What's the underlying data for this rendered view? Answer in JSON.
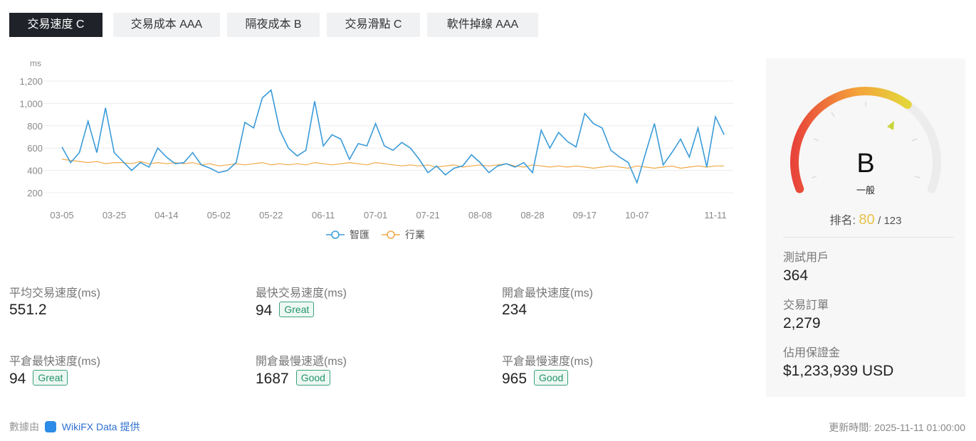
{
  "tabs": [
    "交易速度 C",
    "交易成本 AAA",
    "隔夜成本 B",
    "交易滑點 C",
    "軟件掉線 AAA"
  ],
  "chart_data": {
    "type": "line",
    "y_unit": "ms",
    "categories": [
      "03-05",
      null,
      null,
      null,
      null,
      null,
      "03-25",
      null,
      null,
      null,
      null,
      null,
      "04-14",
      null,
      null,
      null,
      null,
      null,
      "05-02",
      null,
      null,
      null,
      null,
      null,
      "05-22",
      null,
      null,
      null,
      null,
      null,
      "06-11",
      null,
      null,
      null,
      null,
      null,
      "07-01",
      null,
      null,
      null,
      null,
      null,
      "07-21",
      null,
      null,
      null,
      null,
      null,
      "08-08",
      null,
      null,
      null,
      null,
      null,
      "08-28",
      null,
      null,
      null,
      null,
      null,
      "09-17",
      null,
      null,
      null,
      null,
      null,
      "10-07",
      null,
      null,
      null,
      null,
      null,
      null,
      null,
      null,
      "11-11",
      null
    ],
    "series": [
      {
        "name": "智匯",
        "color": "#3a9bd9",
        "values": [
          610,
          470,
          560,
          840,
          560,
          960,
          560,
          480,
          400,
          470,
          430,
          600,
          520,
          460,
          470,
          560,
          450,
          420,
          380,
          400,
          470,
          830,
          780,
          1050,
          1120,
          760,
          600,
          530,
          580,
          1020,
          620,
          720,
          680,
          500,
          640,
          620,
          820,
          620,
          580,
          650,
          600,
          500,
          380,
          440,
          360,
          420,
          440,
          540,
          470,
          380,
          440,
          460,
          430,
          470,
          380,
          760,
          600,
          740,
          660,
          610,
          910,
          820,
          780,
          580,
          520,
          470,
          290,
          560,
          820,
          450,
          560,
          680,
          520,
          780,
          430,
          880,
          720
        ]
      },
      {
        "name": "行業",
        "color": "#f0a848",
        "values": [
          500,
          490,
          480,
          470,
          480,
          460,
          470,
          470,
          460,
          480,
          460,
          470,
          460,
          470,
          460,
          470,
          450,
          460,
          440,
          450,
          460,
          450,
          460,
          470,
          450,
          460,
          450,
          460,
          450,
          470,
          460,
          450,
          460,
          470,
          460,
          450,
          470,
          460,
          450,
          440,
          450,
          440,
          450,
          430,
          440,
          450,
          430,
          440,
          450,
          440,
          450,
          460,
          440,
          430,
          450,
          440,
          430,
          440,
          430,
          440,
          430,
          420,
          430,
          440,
          430,
          420,
          440,
          430,
          420,
          430,
          440,
          420,
          430,
          440,
          430,
          440,
          440
        ]
      }
    ],
    "ylim": [
      200,
      1200
    ],
    "yticks": [
      200,
      400,
      600,
      800,
      {
        "value": 1000,
        "label": "1,000"
      },
      {
        "value": 1200,
        "label": "1,200"
      }
    ],
    "grid": true
  },
  "stats": [
    {
      "label": "平均交易速度(ms)",
      "value": "551.2"
    },
    {
      "label": "最快交易速度(ms)",
      "value": "94",
      "badge": "Great"
    },
    {
      "label": "開倉最快速度(ms)",
      "value": "234"
    },
    {
      "label": "平倉最快速度(ms)",
      "value": "94",
      "badge": "Great"
    },
    {
      "label": "開倉最慢速遞(ms)",
      "value": "1687",
      "badge": "Good"
    },
    {
      "label": "平倉最慢速度(ms)",
      "value": "965",
      "badge": "Good"
    }
  ],
  "gauge": {
    "grade": "B",
    "grade_text": "一般",
    "rank_label": "排名:",
    "rank": "80",
    "rank_total": "/ 123"
  },
  "side_stats": [
    {
      "label": "測試用戶",
      "value": "364"
    },
    {
      "label": "交易訂單",
      "value": "2,279"
    },
    {
      "label": "佔用保證金",
      "value": "$1,233,939 USD"
    }
  ],
  "footer": {
    "source_prefix": "數據由",
    "source": "WikiFX Data 提供",
    "updated": "更新時間: 2025-11-11 01:00:00"
  }
}
